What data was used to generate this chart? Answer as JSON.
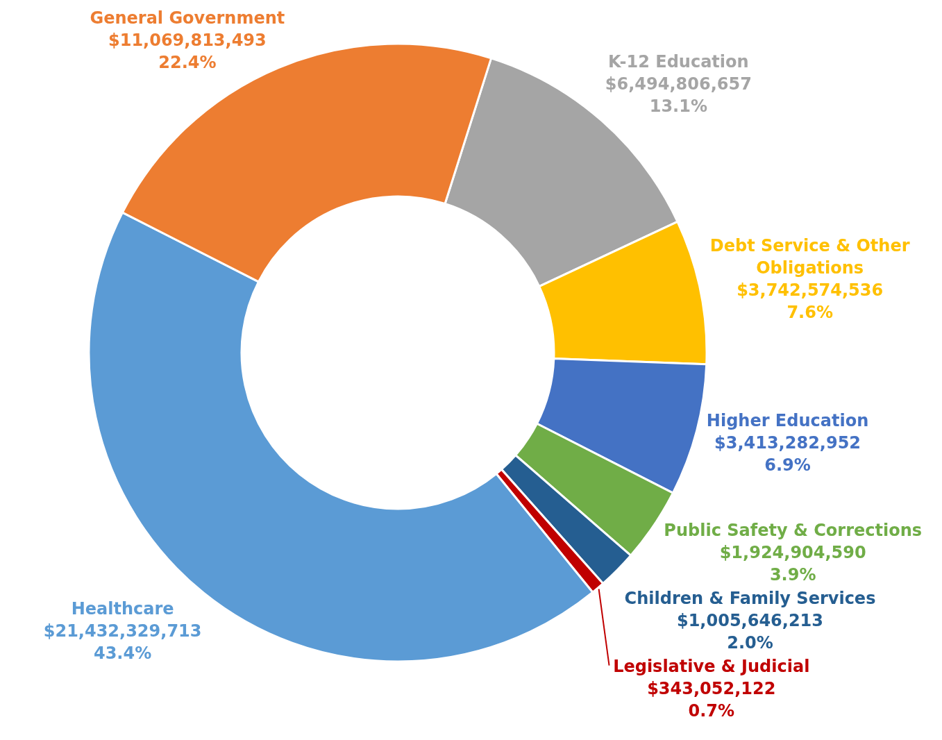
{
  "chart_data": {
    "type": "donut",
    "categories": [
      "K-12 Education",
      "Debt Service & Other Obligations",
      "Higher Education",
      "Public Safety & Corrections",
      "Children & Family Services",
      "Legislative & Judicial",
      "Healthcare",
      "General Government"
    ],
    "values": [
      6494806657,
      3742574536,
      3413282952,
      1924904590,
      1005646213,
      343052122,
      21432329713,
      11069813493
    ],
    "colors": [
      "#a5a5a5",
      "#ffc000",
      "#4472c4",
      "#70ad47",
      "#255e91",
      "#c00000",
      "#5b9bd5",
      "#ed7d31"
    ],
    "value_labels": [
      "$6,494,806,657\n13.1%",
      "$3,742,574,536\n7.6%",
      "$3,413,282,952\n6.9%",
      "$1,924,904,590\n3.9%",
      "$1,005,646,213\n2.0%",
      "$343,052,122\n0.7%",
      "$21,432,329,713\n43.4%",
      "$11,069,813,493\n22.4%"
    ]
  }
}
